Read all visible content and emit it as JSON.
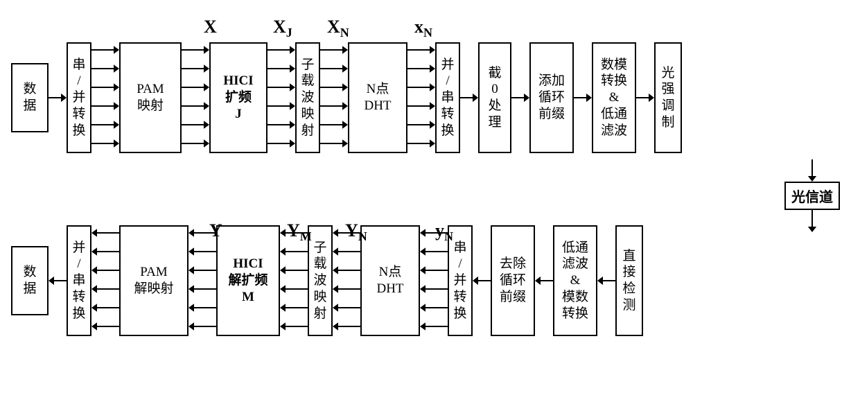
{
  "labels_top": {
    "X": "X",
    "XJ": "X",
    "XJsub": "J",
    "XN1": "X",
    "XN1sub": "N",
    "xN1": "x",
    "xN1sub": "N"
  },
  "labels_bot": {
    "Y": "Y",
    "YM": "Y",
    "YMsub": "M",
    "YN1": "Y",
    "YN1sub": "N",
    "yN1": "y",
    "yN1sub": "N"
  },
  "top": {
    "b0": "数\n据",
    "b1": "串\n/\n并\n转\n换",
    "b2": "PAM\n映射",
    "b3": "HICI\n扩频\nJ",
    "b4": "子\n载\n波\n映\n射",
    "b5": "N点\nDHT",
    "b6": "并\n/\n串\n转\n换",
    "b7": "截\n0\n处\n理",
    "b8": "添加\n循环\n前缀",
    "b9": "数模\n转换\n&\n低通\n滤波",
    "b10": "光\n强\n调\n制"
  },
  "channel": "光信道",
  "bot": {
    "b0": "数\n据",
    "b1": "并\n/\n串\n转\n换",
    "b2": "PAM\n解映射",
    "b3": "HICI\n解扩频\nM",
    "b4": "子\n载\n波\n映\n射",
    "b5": "N点\nDHT",
    "b6": "串\n/\n并\n转\n换",
    "b7": "去除\n循环\n前缀",
    "b8": "低通\n滤波\n&\n模数\n转换",
    "b9": "直\n接\n检\n测"
  },
  "style": {
    "stroke": "#000000",
    "stroke_width": 2,
    "arrow_head": 8,
    "single_arrow_w": 26,
    "multi_arrow_w": 40,
    "multi_count": 6,
    "block_h_tall": 160,
    "block_h_short": 80
  }
}
